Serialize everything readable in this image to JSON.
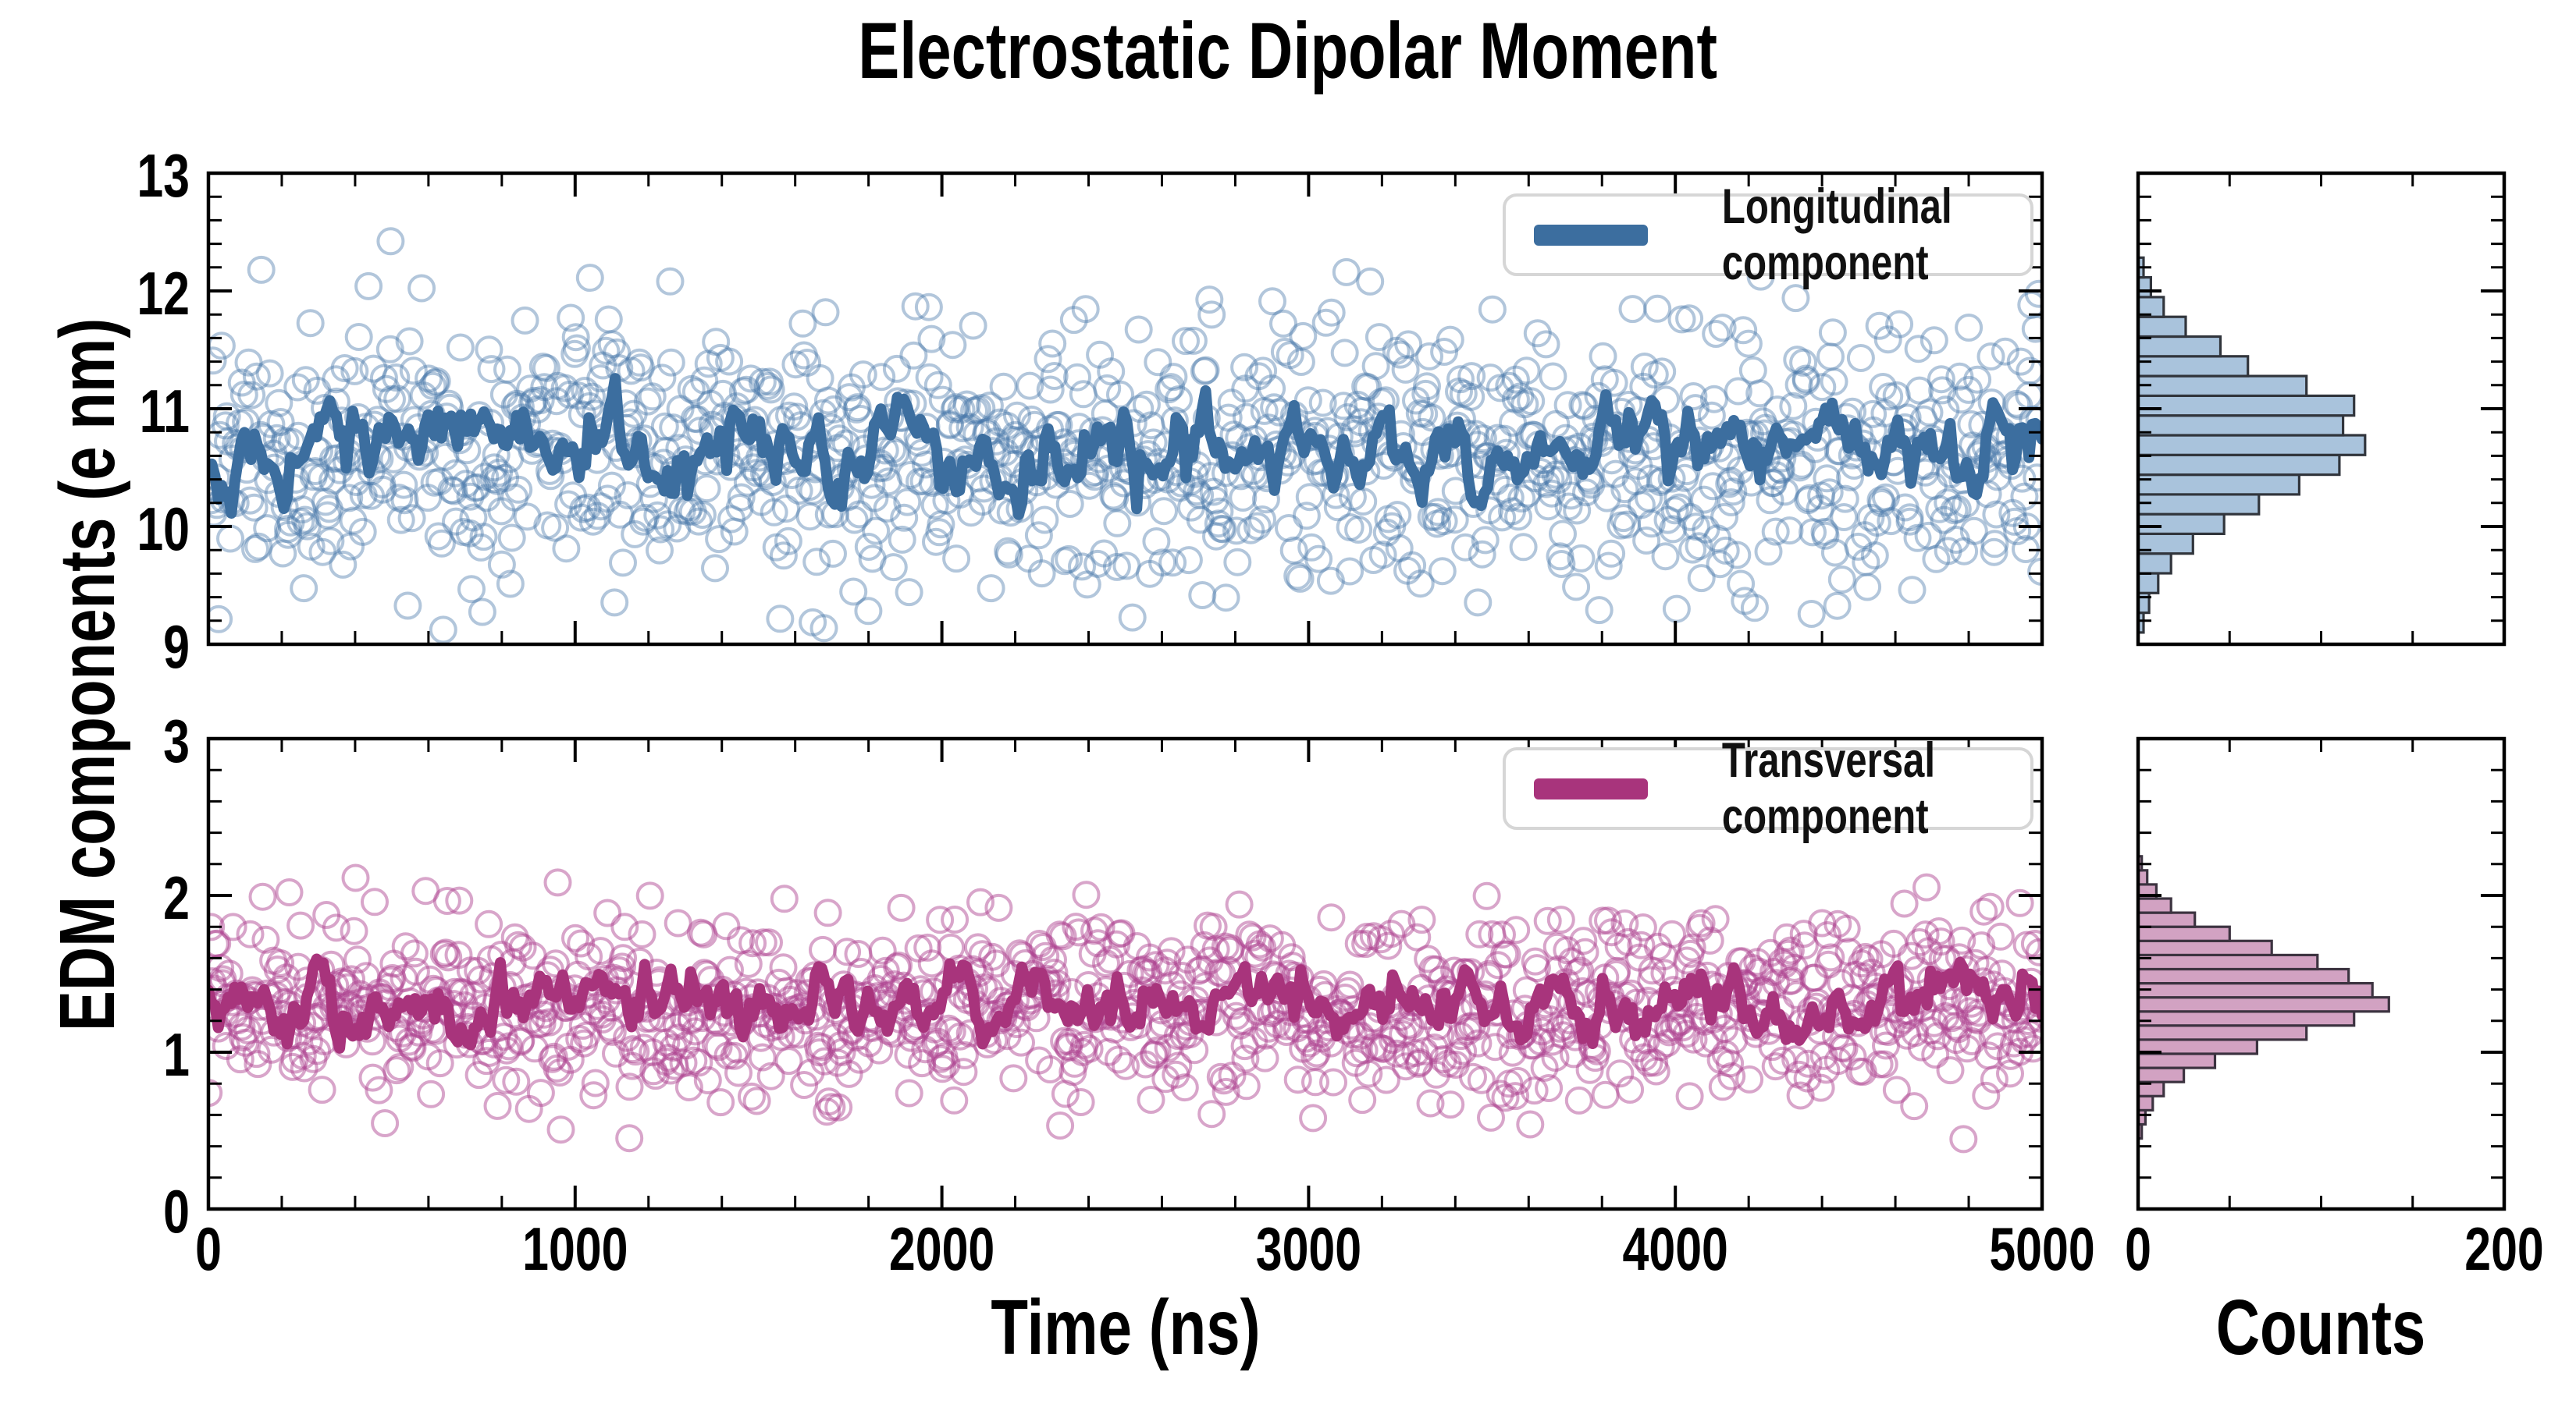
{
  "chart_data": {
    "type": "scatter",
    "title": "Electrostatic Dipolar Moment",
    "y_axis_label": "EDM components (e nm)",
    "x_axis": {
      "label": "Time (ns)",
      "min": 0,
      "max": 5000,
      "major_step": 1000,
      "minor_step": 200,
      "tick_labels": [
        "0",
        "1000",
        "2000",
        "3000",
        "4000",
        "5000"
      ]
    },
    "counts_axis": {
      "label": "Counts",
      "min": 0,
      "max": 200,
      "major_ticks": [
        0,
        200
      ],
      "minor_ticks": [
        50,
        100,
        150
      ],
      "tick_labels": [
        "0",
        "200"
      ]
    },
    "grid": false,
    "background": "#ffffff",
    "panels": [
      {
        "id": "longitudinal",
        "legend_label": "Longitudinal component",
        "legend_position": "upper right",
        "line_color": "#3c6e9f",
        "marker_color": "#4878aa",
        "marker_opacity": 0.42,
        "hist_fill": "#a9c3dc",
        "hist_edge": "#31353c",
        "y_axis": {
          "min": 9,
          "max": 13,
          "major_step": 1,
          "minor_step": 0.2,
          "tick_labels": [
            "9",
            "10",
            "11",
            "12",
            "13"
          ]
        },
        "series": {
          "kind": "scatter-with-running-mean",
          "n_points": 1150,
          "mean": 10.62,
          "std": 0.55,
          "y_clip": [
            9.05,
            12.5
          ],
          "line_mean": 10.66,
          "line_std": 0.2,
          "n_line": 560,
          "seed": 20240
        },
        "histogram": {
          "orientation": "horizontal",
          "bin_start": 9.1,
          "bin_width": 0.1675,
          "counts": [
            3,
            6,
            11,
            18,
            30,
            47,
            66,
            88,
            110,
            124,
            112,
            118,
            92,
            60,
            45,
            26,
            14,
            7,
            3
          ]
        }
      },
      {
        "id": "transversal",
        "legend_label": "Transversal component",
        "legend_position": "upper right",
        "line_color": "#a8347c",
        "marker_color": "#ad4390",
        "marker_opacity": 0.48,
        "hist_fill": "#d2a2c2",
        "hist_edge": "#3c3340",
        "y_axis": {
          "min": 0,
          "max": 3,
          "major_step": 1,
          "minor_step": 0.2,
          "tick_labels": [
            "0",
            "1",
            "2",
            "3"
          ]
        },
        "series": {
          "kind": "scatter-with-running-mean",
          "n_points": 1150,
          "mean": 1.3,
          "std": 0.3,
          "y_clip": [
            0.42,
            2.28
          ],
          "line_mean": 1.31,
          "line_std": 0.115,
          "n_line": 560,
          "seed": 7119
        },
        "histogram": {
          "orientation": "horizontal",
          "bin_start": 0.45,
          "bin_width": 0.09,
          "counts": [
            2,
            4,
            8,
            14,
            25,
            42,
            65,
            92,
            118,
            137,
            128,
            115,
            98,
            73,
            50,
            31,
            18,
            10,
            5,
            2
          ]
        }
      }
    ]
  }
}
